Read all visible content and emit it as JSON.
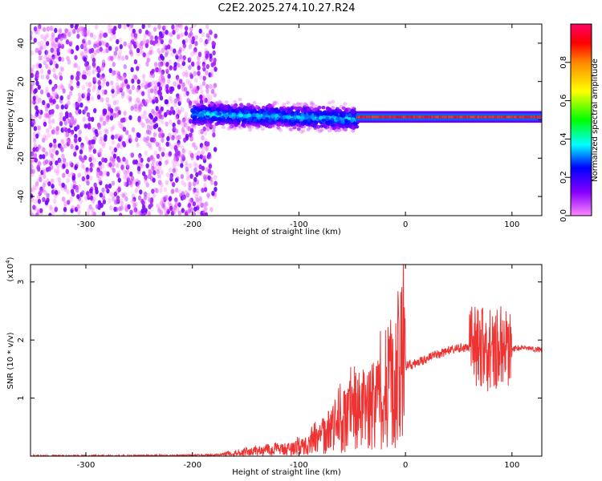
{
  "chart_data": [
    {
      "type": "heatmap",
      "title": "C2E2.2025.274.10.27.R24",
      "xlabel": "Height of straight line (km)",
      "ylabel": "Frequency (Hz)",
      "xlim": [
        -352,
        128
      ],
      "ylim": [
        -50,
        50
      ],
      "xticks": [
        -300,
        -200,
        -100,
        0,
        100
      ],
      "xtick_labels": [
        "-300",
        "-200",
        "-100",
        "0",
        "100"
      ],
      "yticks": [
        -40,
        -20,
        0,
        20,
        40
      ],
      "ytick_labels": [
        "-40",
        "-20",
        "0",
        "20",
        "40"
      ],
      "colorbar": {
        "label": "Normalized spectral amplitude",
        "range": [
          0,
          1
        ],
        "ticks": [
          0,
          0.2,
          0.4,
          0.6,
          0.8
        ],
        "tick_labels": [
          "0.0",
          "0.2",
          "0.4",
          "0.6",
          "0.8"
        ],
        "colormap": [
          "#ff88ff",
          "#8800ff",
          "#0000ff",
          "#00ffff",
          "#00ff00",
          "#ffff00",
          "#ff8800",
          "#ff0000",
          "#ff0066"
        ]
      },
      "regions": [
        {
          "name": "noise",
          "x_range": [
            -352,
            -178
          ],
          "freq_range": [
            -50,
            50
          ],
          "amplitude": 0.1
        },
        {
          "name": "transition",
          "x_range": [
            -200,
            -45
          ],
          "freq_center": 3,
          "freq_spread": 10,
          "amplitude": 0.3
        },
        {
          "name": "tone",
          "x_range": [
            -45,
            128
          ],
          "freq_center": 1.5,
          "freq_spread": 3,
          "amplitude": 0.9
        }
      ]
    },
    {
      "type": "line",
      "title": "",
      "xlabel": "Height of straight line (km)",
      "ylabel": "SNR (10 * v/v)",
      "y_multiplier": "(x10",
      "y_multiplier_exp": "4",
      "xlim": [
        -352,
        128
      ],
      "ylim": [
        0,
        3.3
      ],
      "xticks": [
        -300,
        -200,
        -100,
        0,
        100
      ],
      "xtick_labels": [
        "-300",
        "-200",
        "-100",
        "0",
        "100"
      ],
      "yticks": [
        1,
        2,
        3
      ],
      "ytick_labels": [
        "1",
        "2",
        "3"
      ],
      "color": "#ee3333",
      "series": [
        {
          "name": "SNR",
          "x": [
            -352,
            -250,
            -200,
            -180,
            -160,
            -140,
            -120,
            -100,
            -90,
            -80,
            -70,
            -60,
            -50,
            -45,
            -40,
            -35,
            -30,
            -25,
            -20,
            -15,
            -10,
            -5,
            0,
            10,
            20,
            30,
            40,
            50,
            60,
            70,
            75,
            78,
            80,
            85,
            90,
            95,
            100,
            110,
            120,
            128
          ],
          "y": [
            0.0,
            0.0,
            0.01,
            0.02,
            0.05,
            0.08,
            0.1,
            0.15,
            0.2,
            0.3,
            0.45,
            0.55,
            0.7,
            0.75,
            0.8,
            0.85,
            0.7,
            0.9,
            1.0,
            1.1,
            1.2,
            1.5,
            1.55,
            1.6,
            1.68,
            1.75,
            1.82,
            1.85,
            1.88,
            1.9,
            1.9,
            1.75,
            1.9,
            1.85,
            1.9,
            1.88,
            1.85,
            1.87,
            1.85,
            1.83
          ]
        }
      ]
    }
  ]
}
